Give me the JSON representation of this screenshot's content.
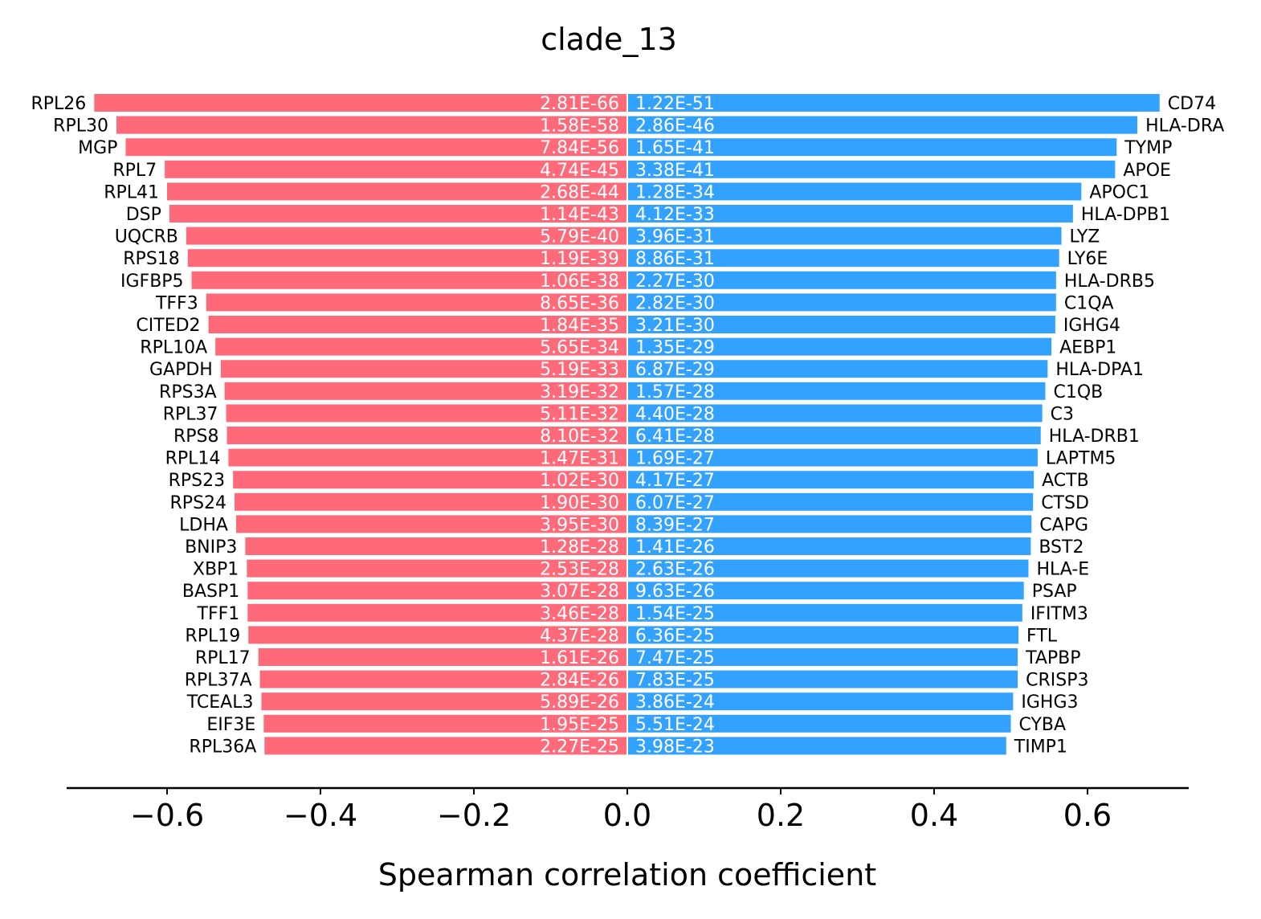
{
  "chart_data": {
    "type": "bar",
    "orientation": "horizontal-diverging",
    "title": "clade_13",
    "xlabel": "Spearman correlation coefficient",
    "xlim": [
      -0.76,
      0.73
    ],
    "xticks": [
      -0.6,
      -0.4,
      -0.2,
      0.0,
      0.2,
      0.4,
      0.6
    ],
    "xtick_labels": [
      "−0.6",
      "−0.4",
      "−0.2",
      "0.0",
      "0.2",
      "0.4",
      "0.6"
    ],
    "grid": false,
    "colors": {
      "negative": "#ff6a7b",
      "positive": "#33a2ff"
    },
    "negative": [
      {
        "gene": "RPL26",
        "value": -0.695,
        "pval": "2.81E-66"
      },
      {
        "gene": "RPL30",
        "value": -0.666,
        "pval": "1.58E-58"
      },
      {
        "gene": "MGP",
        "value": -0.654,
        "pval": "7.84E-56"
      },
      {
        "gene": "RPL7",
        "value": -0.603,
        "pval": "4.74E-45"
      },
      {
        "gene": "RPL41",
        "value": -0.6,
        "pval": "2.68E-44"
      },
      {
        "gene": "DSP",
        "value": -0.597,
        "pval": "1.14E-43"
      },
      {
        "gene": "UQCRB",
        "value": -0.575,
        "pval": "5.79E-40"
      },
      {
        "gene": "RPS18",
        "value": -0.573,
        "pval": "1.19E-39"
      },
      {
        "gene": "IGFBP5",
        "value": -0.568,
        "pval": "1.06E-38"
      },
      {
        "gene": "TFF3",
        "value": -0.549,
        "pval": "8.65E-36"
      },
      {
        "gene": "CITED2",
        "value": -0.546,
        "pval": "1.84E-35"
      },
      {
        "gene": "RPL10A",
        "value": -0.537,
        "pval": "5.65E-34"
      },
      {
        "gene": "GAPDH",
        "value": -0.53,
        "pval": "5.19E-33"
      },
      {
        "gene": "RPS3A",
        "value": -0.525,
        "pval": "3.19E-32"
      },
      {
        "gene": "RPL37",
        "value": -0.523,
        "pval": "5.11E-32"
      },
      {
        "gene": "RPS8",
        "value": -0.522,
        "pval": "8.10E-32"
      },
      {
        "gene": "RPL14",
        "value": -0.52,
        "pval": "1.47E-31"
      },
      {
        "gene": "RPS23",
        "value": -0.514,
        "pval": "1.02E-30"
      },
      {
        "gene": "RPS24",
        "value": -0.512,
        "pval": "1.90E-30"
      },
      {
        "gene": "LDHA",
        "value": -0.51,
        "pval": "3.95E-30"
      },
      {
        "gene": "BNIP3",
        "value": -0.498,
        "pval": "1.28E-28"
      },
      {
        "gene": "XBP1",
        "value": -0.496,
        "pval": "2.53E-28"
      },
      {
        "gene": "BASP1",
        "value": -0.495,
        "pval": "3.07E-28"
      },
      {
        "gene": "TFF1",
        "value": -0.495,
        "pval": "3.46E-28"
      },
      {
        "gene": "RPL19",
        "value": -0.494,
        "pval": "4.37E-28"
      },
      {
        "gene": "RPL17",
        "value": -0.481,
        "pval": "1.61E-26"
      },
      {
        "gene": "RPL37A",
        "value": -0.479,
        "pval": "2.84E-26"
      },
      {
        "gene": "TCEAL3",
        "value": -0.477,
        "pval": "5.89E-26"
      },
      {
        "gene": "EIF3E",
        "value": -0.474,
        "pval": "1.95E-25"
      },
      {
        "gene": "RPL36A",
        "value": -0.473,
        "pval": "2.27E-25"
      }
    ],
    "positive": [
      {
        "gene": "CD74",
        "value": 0.694,
        "pval": "1.22E-51"
      },
      {
        "gene": "HLA-DRA",
        "value": 0.665,
        "pval": "2.86E-46"
      },
      {
        "gene": "TYMP",
        "value": 0.638,
        "pval": "1.65E-41"
      },
      {
        "gene": "APOE",
        "value": 0.636,
        "pval": "3.38E-41"
      },
      {
        "gene": "APOC1",
        "value": 0.592,
        "pval": "1.28E-34"
      },
      {
        "gene": "HLA-DPB1",
        "value": 0.581,
        "pval": "4.12E-33"
      },
      {
        "gene": "LYZ",
        "value": 0.566,
        "pval": "3.96E-31"
      },
      {
        "gene": "LY6E",
        "value": 0.563,
        "pval": "8.86E-31"
      },
      {
        "gene": "HLA-DRB5",
        "value": 0.559,
        "pval": "2.27E-30"
      },
      {
        "gene": "C1QA",
        "value": 0.559,
        "pval": "2.82E-30"
      },
      {
        "gene": "IGHG4",
        "value": 0.558,
        "pval": "3.21E-30"
      },
      {
        "gene": "AEBP1",
        "value": 0.553,
        "pval": "1.35E-29"
      },
      {
        "gene": "HLA-DPA1",
        "value": 0.548,
        "pval": "6.87E-29"
      },
      {
        "gene": "C1QB",
        "value": 0.545,
        "pval": "1.57E-28"
      },
      {
        "gene": "C3",
        "value": 0.541,
        "pval": "4.40E-28"
      },
      {
        "gene": "HLA-DRB1",
        "value": 0.539,
        "pval": "6.41E-28"
      },
      {
        "gene": "LAPTM5",
        "value": 0.535,
        "pval": "1.69E-27"
      },
      {
        "gene": "ACTB",
        "value": 0.53,
        "pval": "4.17E-27"
      },
      {
        "gene": "CTSD",
        "value": 0.529,
        "pval": "6.07E-27"
      },
      {
        "gene": "CAPG",
        "value": 0.527,
        "pval": "8.39E-27"
      },
      {
        "gene": "BST2",
        "value": 0.526,
        "pval": "1.41E-26"
      },
      {
        "gene": "HLA-E",
        "value": 0.523,
        "pval": "2.63E-26"
      },
      {
        "gene": "PSAP",
        "value": 0.517,
        "pval": "9.63E-26"
      },
      {
        "gene": "IFITM3",
        "value": 0.515,
        "pval": "1.54E-25"
      },
      {
        "gene": "FTL",
        "value": 0.51,
        "pval": "6.36E-25"
      },
      {
        "gene": "TAPBP",
        "value": 0.509,
        "pval": "7.47E-25"
      },
      {
        "gene": "CRISP3",
        "value": 0.509,
        "pval": "7.83E-25"
      },
      {
        "gene": "IGHG3",
        "value": 0.503,
        "pval": "3.86E-24"
      },
      {
        "gene": "CYBA",
        "value": 0.5,
        "pval": "5.51E-24"
      },
      {
        "gene": "TIMP1",
        "value": 0.494,
        "pval": "3.98E-23"
      }
    ]
  }
}
